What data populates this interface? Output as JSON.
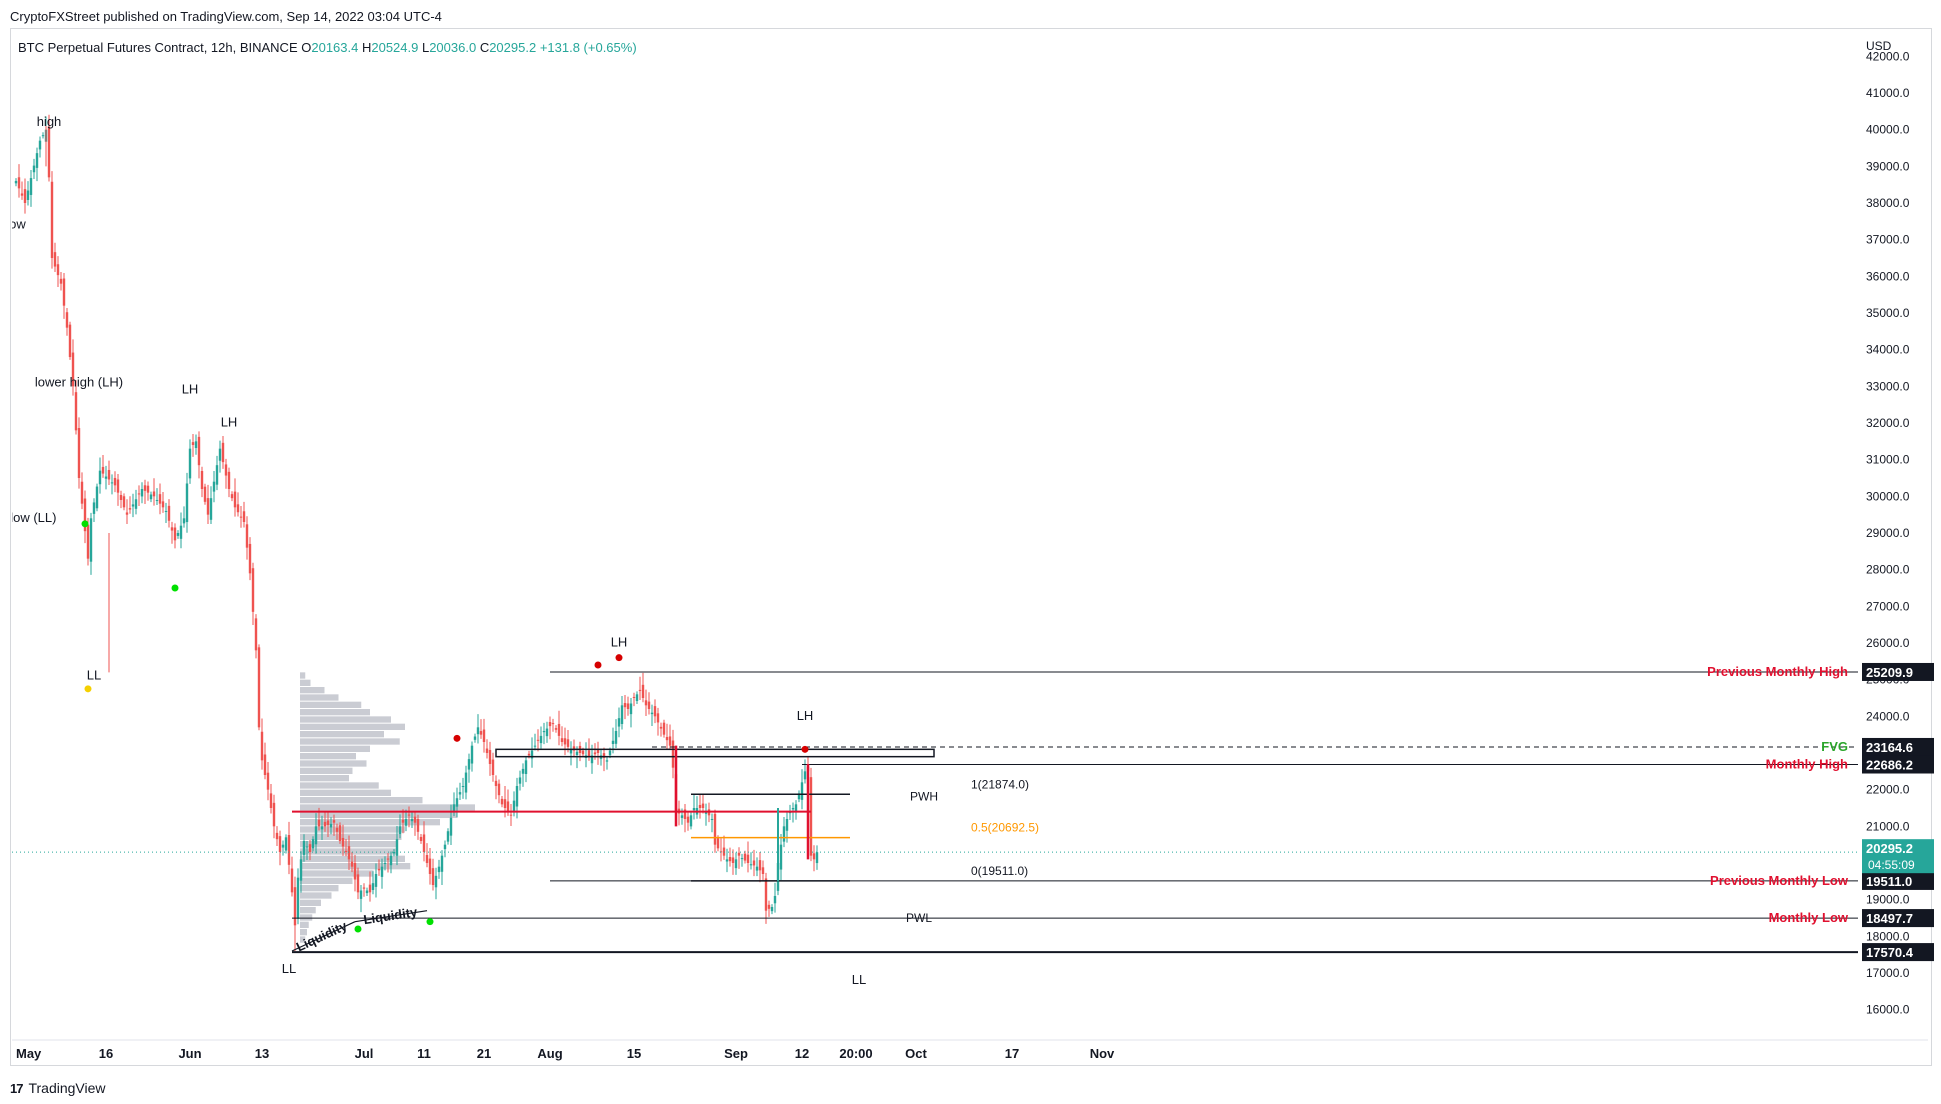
{
  "publish_line": "CryptoFXStreet published on TradingView.com, Sep 14, 2022 03:04 UTC-4",
  "footer_brand": "TradingView",
  "footer_logo": "17",
  "colors": {
    "up": "#26a69a",
    "down": "#ef5350",
    "red": "#e0102f",
    "green": "#2aa52a",
    "orange": "#ff9800"
  },
  "chart_data": {
    "type": "candlestick",
    "symbol_line": "BTC Perpetual Futures Contract, 12h, BINANCE",
    "ohlc_readout": [
      {
        "k": "O",
        "v": "20163.4"
      },
      {
        "k": "H",
        "v": "20524.9"
      },
      {
        "k": "L",
        "v": "20036.0"
      },
      {
        "k": "C",
        "v": "20295.2"
      },
      {
        "k": "",
        "v": "+131.8 (+0.65%)"
      }
    ],
    "currency": "USD",
    "ylim": [
      15500,
      42500
    ],
    "y_ticks": [
      16000,
      17000,
      18000,
      19000,
      20000,
      21000,
      22000,
      23000,
      24000,
      25000,
      26000,
      27000,
      28000,
      29000,
      30000,
      31000,
      32000,
      33000,
      34000,
      35000,
      36000,
      37000,
      38000,
      39000,
      40000,
      41000,
      42000
    ],
    "x_ticks": [
      {
        "label": "May",
        "bar": 0
      },
      {
        "label": "16",
        "bar": 30
      },
      {
        "label": "Jun",
        "bar": 58
      },
      {
        "label": "13",
        "bar": 82
      },
      {
        "label": "Jul",
        "bar": 116
      },
      {
        "label": "11",
        "bar": 136
      },
      {
        "label": "21",
        "bar": 156
      },
      {
        "label": "Aug",
        "bar": 178
      },
      {
        "label": "15",
        "bar": 206
      },
      {
        "label": "Sep",
        "bar": 240
      },
      {
        "label": "12",
        "bar": 262
      },
      {
        "label": "20:00",
        "bar": 280
      },
      {
        "label": "Oct",
        "bar": 300
      },
      {
        "label": "17",
        "bar": 332
      },
      {
        "label": "Nov",
        "bar": 362
      }
    ],
    "last_price": "20295.2",
    "countdown": "04:55:09",
    "anchor_points": [
      [
        0,
        38600
      ],
      [
        3,
        38000
      ],
      [
        8,
        39700
      ],
      [
        10,
        40000
      ],
      [
        11,
        38700
      ],
      [
        12,
        36500
      ],
      [
        15,
        35800
      ],
      [
        17,
        34600
      ],
      [
        19,
        33000
      ],
      [
        20,
        31800
      ],
      [
        21,
        30500
      ],
      [
        22,
        29800
      ],
      [
        24,
        28300
      ],
      [
        25,
        29400
      ],
      [
        28,
        30700
      ],
      [
        33,
        30300
      ],
      [
        37,
        29500
      ],
      [
        42,
        30200
      ],
      [
        46,
        30000
      ],
      [
        50,
        29600
      ],
      [
        53,
        28800
      ],
      [
        56,
        29400
      ],
      [
        58,
        31300
      ],
      [
        60,
        31500
      ],
      [
        62,
        30200
      ],
      [
        64,
        29500
      ],
      [
        66,
        30400
      ],
      [
        68,
        31300
      ],
      [
        71,
        30200
      ],
      [
        73,
        29700
      ],
      [
        76,
        29300
      ],
      [
        78,
        27900
      ],
      [
        80,
        25800
      ],
      [
        81,
        23700
      ],
      [
        82,
        22800
      ],
      [
        84,
        22000
      ],
      [
        86,
        21000
      ],
      [
        88,
        20300
      ],
      [
        90,
        20700
      ],
      [
        92,
        19200
      ],
      [
        93,
        18300
      ],
      [
        94,
        19600
      ],
      [
        96,
        20600
      ],
      [
        98,
        20300
      ],
      [
        100,
        21000
      ],
      [
        103,
        21000
      ],
      [
        106,
        21100
      ],
      [
        108,
        20600
      ],
      [
        110,
        20300
      ],
      [
        112,
        19900
      ],
      [
        114,
        19200
      ],
      [
        116,
        19300
      ],
      [
        118,
        19200
      ],
      [
        120,
        19700
      ],
      [
        123,
        20000
      ],
      [
        126,
        20300
      ],
      [
        128,
        21000
      ],
      [
        131,
        21300
      ],
      [
        133,
        21100
      ],
      [
        135,
        20600
      ],
      [
        137,
        20000
      ],
      [
        139,
        19400
      ],
      [
        141,
        19900
      ],
      [
        143,
        20500
      ],
      [
        146,
        21600
      ],
      [
        149,
        22100
      ],
      [
        152,
        23200
      ],
      [
        154,
        23700
      ],
      [
        156,
        23300
      ],
      [
        158,
        22700
      ],
      [
        160,
        22100
      ],
      [
        162,
        21600
      ],
      [
        165,
        21300
      ],
      [
        167,
        22100
      ],
      [
        170,
        22800
      ],
      [
        173,
        23200
      ],
      [
        176,
        23600
      ],
      [
        179,
        23800
      ],
      [
        182,
        23300
      ],
      [
        185,
        23100
      ],
      [
        188,
        23000
      ],
      [
        191,
        22900
      ],
      [
        194,
        23000
      ],
      [
        197,
        22800
      ],
      [
        200,
        23600
      ],
      [
        202,
        24300
      ],
      [
        204,
        24200
      ],
      [
        206,
        24500
      ],
      [
        208,
        24700
      ],
      [
        210,
        24300
      ],
      [
        213,
        24000
      ],
      [
        216,
        23500
      ],
      [
        218,
        23200
      ],
      [
        219,
        22600
      ],
      [
        220,
        21400
      ],
      [
        222,
        21300
      ],
      [
        224,
        21100
      ],
      [
        226,
        21500
      ],
      [
        229,
        21500
      ],
      [
        232,
        21200
      ],
      [
        233,
        20500
      ],
      [
        235,
        20300
      ],
      [
        237,
        20100
      ],
      [
        239,
        20000
      ],
      [
        241,
        20200
      ],
      [
        244,
        20000
      ],
      [
        247,
        19900
      ],
      [
        249,
        19700
      ],
      [
        250,
        18700
      ],
      [
        252,
        18800
      ],
      [
        253,
        19100
      ],
      [
        254,
        20000
      ],
      [
        256,
        21000
      ],
      [
        258,
        21400
      ],
      [
        260,
        21600
      ],
      [
        262,
        22200
      ],
      [
        263,
        22500
      ],
      [
        264,
        22500
      ],
      [
        265,
        20200
      ],
      [
        266,
        20100
      ],
      [
        267,
        20295
      ]
    ],
    "anchor_note_hidden_wicks": [
      [
        8,
        "high"
      ],
      [
        26,
        "low"
      ]
    ],
    "profile": {
      "levels": [
        25100,
        24900,
        24700,
        24500,
        24300,
        24100,
        23900,
        23700,
        23500,
        23300,
        23100,
        22900,
        22700,
        22500,
        22300,
        22100,
        21900,
        21700,
        21500,
        21300,
        21100,
        20900,
        20700,
        20500,
        20300,
        20100,
        19900,
        19700,
        19500,
        19300,
        19100,
        18900,
        18700,
        18500,
        18300,
        18100,
        17900
      ],
      "volumes": [
        3,
        6,
        14,
        22,
        35,
        40,
        52,
        60,
        48,
        57,
        40,
        32,
        38,
        30,
        28,
        45,
        52,
        70,
        100,
        90,
        80,
        60,
        58,
        55,
        56,
        60,
        63,
        42,
        30,
        22,
        18,
        12,
        9,
        7,
        5,
        4,
        3
      ]
    },
    "horizontal_levels": [
      {
        "name": "previous-monthly-high",
        "price": 25209.9,
        "from": 178,
        "label": "Previous Monthly High",
        "tag": "25209.9"
      },
      {
        "name": "fvg",
        "price": 23164.6,
        "from": 212,
        "dashed": true,
        "label": "FVG",
        "tag": "23164.6"
      },
      {
        "name": "monthly-high",
        "price": 22686.2,
        "from": 262,
        "label": "Monthly High",
        "tag": "22686.2"
      },
      {
        "name": "previous-monthly-low",
        "price": 19511.0,
        "from": 178,
        "label": "Previous Monthly Low",
        "tag": "19511.0"
      },
      {
        "name": "monthly-low",
        "price": 18497.7,
        "from": 92,
        "label": "Monthly Low",
        "tag": "18497.7"
      },
      {
        "name": "ll-bottom",
        "price": 17570.4,
        "from": 92,
        "label": "",
        "tag": "17570.4"
      }
    ],
    "fib": [
      {
        "price": 21874.0,
        "label": "1(21874.0)",
        "color": "#131722"
      },
      {
        "price": 20692.5,
        "label": "0.5(20692.5)",
        "color": "#ff9800"
      },
      {
        "price": 19511.0,
        "label": "0(19511.0)",
        "color": "#131722"
      }
    ],
    "fib_range": [
      225,
      278
    ],
    "pwh_label": "PWH",
    "pwl_label": "PWL",
    "red_horizontal": {
      "price": 21400,
      "from": 92,
      "to": 265
    },
    "fvg_box": {
      "top": 23100,
      "bottom": 22900,
      "from": 160,
      "to": 306
    },
    "annotations": [
      {
        "text": "high",
        "bar": 11,
        "price": 40100
      },
      {
        "text": "low",
        "bar": 0,
        "price": 37300
      },
      {
        "text": "lower high (LH)",
        "bar": 21,
        "price": 33000
      },
      {
        "text": "lower low (LL)",
        "bar": 0,
        "price": 29300
      },
      {
        "text": "LH",
        "bar": 58,
        "price": 32800
      },
      {
        "text": "LH",
        "bar": 71,
        "price": 31900
      },
      {
        "text": "LL",
        "bar": 26,
        "price": 25000
      },
      {
        "text": "LL",
        "bar": 91,
        "price": 17000
      },
      {
        "text": "LH",
        "bar": 201,
        "price": 25900
      },
      {
        "text": "LH",
        "bar": 263,
        "price": 23900
      },
      {
        "text": "LL",
        "bar": 281,
        "price": 16700
      }
    ],
    "markers": [
      {
        "bar": 23,
        "price": 29250,
        "color": "#00e000"
      },
      {
        "bar": 24,
        "price": 24750,
        "color": "#f5d000"
      },
      {
        "bar": 53,
        "price": 27500,
        "color": "#00e000"
      },
      {
        "bar": 114,
        "price": 18200,
        "color": "#00e000"
      },
      {
        "bar": 138,
        "price": 18400,
        "color": "#00e000"
      },
      {
        "bar": 147,
        "price": 23400,
        "color": "#d60000"
      },
      {
        "bar": 194,
        "price": 25400,
        "color": "#d60000"
      },
      {
        "bar": 201,
        "price": 25600,
        "color": "#d60000"
      },
      {
        "bar": 263,
        "price": 23100,
        "color": "#d60000"
      }
    ],
    "liquidity": [
      {
        "text": "Liquidity",
        "from": 92,
        "to": 113,
        "price1": 17600,
        "price2": 18400
      },
      {
        "text": "Liquidity",
        "from": 113,
        "to": 137,
        "price1": 18400,
        "price2": 18700
      }
    ]
  }
}
